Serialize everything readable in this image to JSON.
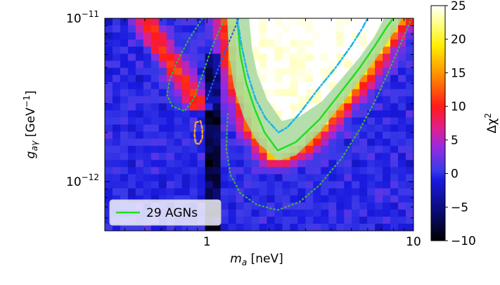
{
  "chart_data": {
    "type": "heatmap",
    "xlabel_main": "m",
    "xlabel_sub": "a",
    "xlabel_unit": "[neV]",
    "ylabel_main": "g",
    "ylabel_sub": "aγ",
    "ylabel_unit_pre": "[GeV",
    "ylabel_unit_sup": "−1",
    "ylabel_unit_post": "]",
    "x_scale": "log",
    "y_scale": "log",
    "xlim": [
      0.32,
      10
    ],
    "ylim": [
      5e-13,
      1e-11
    ],
    "x_ticks": [
      {
        "value": 1,
        "label": "1"
      },
      {
        "value": 10,
        "label": "10"
      }
    ],
    "y_ticks": [
      {
        "value": 1e-12,
        "base": "10",
        "exp": "−12"
      },
      {
        "value": 1e-11,
        "base": "10",
        "exp": "−11"
      }
    ],
    "colorbar": {
      "label_main": "Δχ",
      "label_sup": "2",
      "range": [
        -10,
        25
      ],
      "ticks": [
        {
          "value": 25,
          "label": "25"
        },
        {
          "value": 20,
          "label": "20"
        },
        {
          "value": 15,
          "label": "15"
        },
        {
          "value": 10,
          "label": "10"
        },
        {
          "value": 5,
          "label": "5"
        },
        {
          "value": 0,
          "label": "0"
        },
        {
          "value": -5,
          "label": "−5"
        },
        {
          "value": -10,
          "label": "−10"
        }
      ]
    },
    "legend": {
      "placement": "lower-left",
      "entries": [
        {
          "label": "29 AGNs",
          "color": "#22dd22",
          "style": "solid"
        }
      ]
    },
    "heatmap_grid": {
      "nx": 40,
      "ny": 30
    },
    "heatmap_peak_bands": [
      {
        "description": "main ridge along lower-left edge of excluded region",
        "delta_chi2_max": 22
      },
      {
        "description": "secondary ridge near m_a ≈ 0.7–0.9 neV",
        "delta_chi2_max": 12
      }
    ],
    "contours": [
      {
        "name": "excluded-region-boundary",
        "style": "solid",
        "color": "#22dd22",
        "points": [
          [
            1.4,
            1e-11
          ],
          [
            1.45,
            6e-12
          ],
          [
            1.55,
            4e-12
          ],
          [
            1.7,
            2.8e-12
          ],
          [
            1.9,
            2e-12
          ],
          [
            2.2,
            1.55e-12
          ],
          [
            2.7,
            1.75e-12
          ],
          [
            3.5,
            2.4e-12
          ],
          [
            4.5,
            3.6e-12
          ],
          [
            5.5,
            5e-12
          ],
          [
            6.5,
            6.8e-12
          ],
          [
            7.5,
            9e-12
          ],
          [
            8.0,
            1e-11
          ]
        ]
      },
      {
        "name": "excluded-region-boundary-band",
        "style": "band",
        "color": "#a8d8a0",
        "upper": [
          [
            1.6,
            1e-11
          ],
          [
            1.65,
            6.5e-12
          ],
          [
            1.75,
            4.6e-12
          ],
          [
            1.95,
            3.2e-12
          ],
          [
            2.3,
            2.35e-12
          ],
          [
            2.8,
            2.5e-12
          ],
          [
            3.6,
            3.1e-12
          ],
          [
            4.5,
            4.3e-12
          ],
          [
            5.5,
            5.8e-12
          ],
          [
            6.5,
            7.8e-12
          ],
          [
            7.2,
            1e-11
          ]
        ],
        "lower": [
          [
            1.25,
            1e-11
          ],
          [
            1.28,
            6e-12
          ],
          [
            1.35,
            3.8e-12
          ],
          [
            1.5,
            2.5e-12
          ],
          [
            1.75,
            1.75e-12
          ],
          [
            2.2,
            1.35e-12
          ],
          [
            2.7,
            1.45e-12
          ],
          [
            3.5,
            2e-12
          ],
          [
            4.5,
            3e-12
          ],
          [
            5.6,
            4.3e-12
          ],
          [
            6.8,
            6e-12
          ],
          [
            8.2,
            8.5e-12
          ],
          [
            8.8,
            1e-11
          ]
        ]
      },
      {
        "name": "dotted-contour-left",
        "style": "dotted",
        "color": "#3fb04a",
        "points": [
          [
            0.95,
            1e-11
          ],
          [
            0.82,
            7.5e-12
          ],
          [
            0.72,
            5.5e-12
          ],
          [
            0.66,
            4.2e-12
          ],
          [
            0.64,
            3.4e-12
          ],
          [
            0.68,
            2.9e-12
          ],
          [
            0.78,
            2.7e-12
          ],
          [
            0.86,
            3.2e-12
          ],
          [
            0.95,
            4.5e-12
          ],
          [
            1.05,
            6.5e-12
          ],
          [
            1.15,
            8.5e-12
          ],
          [
            1.22,
            1e-11
          ]
        ]
      },
      {
        "name": "dotted-contour-right",
        "style": "dotted",
        "color": "#3fb04a",
        "points": [
          [
            1.26,
            2.6e-12
          ],
          [
            1.24,
            1.6e-12
          ],
          [
            1.3,
            1.1e-12
          ],
          [
            1.45,
            8.5e-13
          ],
          [
            1.75,
            7.2e-13
          ],
          [
            2.2,
            6.7e-13
          ],
          [
            2.8,
            7.5e-13
          ],
          [
            3.5,
            9.5e-13
          ],
          [
            4.5,
            1.4e-12
          ],
          [
            5.5,
            2.1e-12
          ],
          [
            6.5,
            3.1e-12
          ],
          [
            7.5,
            4.6e-12
          ],
          [
            8.5,
            6.6e-12
          ],
          [
            9.3,
            8.6e-12
          ],
          [
            9.8,
            1e-11
          ]
        ]
      },
      {
        "name": "dashed-contour-small",
        "style": "dashed",
        "color": "#f0a030",
        "points": [
          [
            0.88,
            2.3e-12
          ],
          [
            0.93,
            2.35e-12
          ],
          [
            0.95,
            2.1e-12
          ],
          [
            0.95,
            1.85e-12
          ],
          [
            0.92,
            1.7e-12
          ],
          [
            0.88,
            1.72e-12
          ],
          [
            0.87,
            1.95e-12
          ],
          [
            0.88,
            2.3e-12
          ]
        ]
      },
      {
        "name": "dash-dot-contour",
        "style": "dashdot",
        "color": "#1ab4e8",
        "points": [
          [
            1.4,
            1e-11
          ],
          [
            1.47,
            6.8e-12
          ],
          [
            1.57,
            4.6e-12
          ],
          [
            1.72,
            3.2e-12
          ],
          [
            1.92,
            2.45e-12
          ],
          [
            2.22,
            2e-12
          ],
          [
            2.45,
            2.15e-12
          ],
          [
            2.8,
            2.6e-12
          ],
          [
            3.4,
            3.6e-12
          ],
          [
            4.2,
            5e-12
          ],
          [
            5.0,
            6.8e-12
          ],
          [
            5.6,
            8.5e-12
          ],
          [
            6.0,
            1e-11
          ]
        ]
      },
      {
        "name": "blue-dotted-diagonal",
        "style": "dotted",
        "color": "#2060ff",
        "points": [
          [
            1.0,
            3.2e-12
          ],
          [
            1.08,
            4.2e-12
          ],
          [
            1.18,
            5.6e-12
          ],
          [
            1.28,
            7.2e-12
          ],
          [
            1.38,
            9e-12
          ],
          [
            1.42,
            1e-11
          ]
        ]
      }
    ]
  }
}
